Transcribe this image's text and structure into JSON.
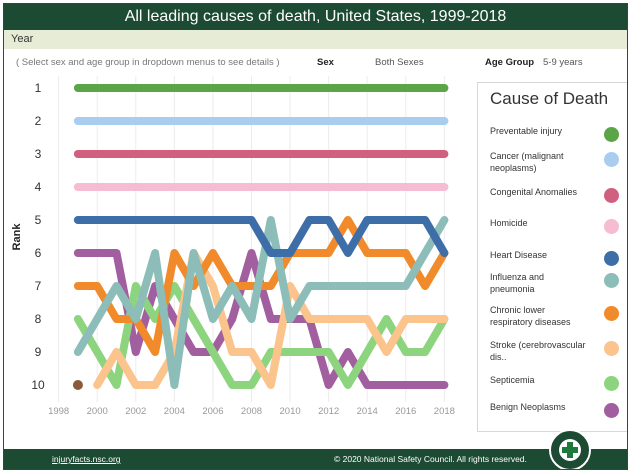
{
  "header": {
    "title": "All leading causes of death, United States, 1999-2018",
    "year_label": "Year"
  },
  "controls": {
    "instructions": "( Select sex and age group in dropdown menus to see details )",
    "sex_label": "Sex",
    "sex_value": "Both Sexes",
    "age_label": "Age Group",
    "age_value": "5-9 years"
  },
  "legend": {
    "title": "Cause of Death",
    "items": [
      {
        "label": "Preventable injury",
        "color": "#5aa646"
      },
      {
        "label": "Cancer (malignant neoplasms)",
        "color": "#a9cdef"
      },
      {
        "label": "Congenital Anomalies",
        "color": "#d1607f"
      },
      {
        "label": "Homicide",
        "color": "#f5bcd2"
      },
      {
        "label": "Heart Disease",
        "color": "#3d6ea8"
      },
      {
        "label": "Influenza and pneumonia",
        "color": "#8dbdb8"
      },
      {
        "label": "Chronic lower respiratory diseases",
        "color": "#f08a2a"
      },
      {
        "label": "Stroke (cerebrovascular dis..",
        "color": "#fbc48c"
      },
      {
        "label": "Septicemia",
        "color": "#8dd47e"
      },
      {
        "label": "Benign Neoplasms",
        "color": "#a25f9f"
      }
    ]
  },
  "footer": {
    "link": "injuryfacts.nsc.org",
    "copyright": "© 2020 National Safety Council. All rights reserved."
  },
  "chart_data": {
    "type": "line",
    "title": "All leading causes of death, United States, 1999-2018",
    "ylabel": "Rank",
    "xlabel": "",
    "x_ticks": [
      1998,
      2000,
      2002,
      2004,
      2006,
      2008,
      2010,
      2012,
      2014,
      2016,
      2018
    ],
    "y_ticks": [
      1,
      2,
      3,
      4,
      5,
      6,
      7,
      8,
      9,
      10
    ],
    "xlim": [
      1997.5,
      2018.5
    ],
    "ylim": [
      10.5,
      0.6
    ],
    "y_inverted": true,
    "grid": "vertical",
    "x": [
      1999,
      2000,
      2001,
      2002,
      2003,
      2004,
      2005,
      2006,
      2007,
      2008,
      2009,
      2010,
      2011,
      2012,
      2013,
      2014,
      2015,
      2016,
      2017,
      2018
    ],
    "series": [
      {
        "name": "Preventable injury",
        "color": "#5aa646",
        "values": [
          1,
          1,
          1,
          1,
          1,
          1,
          1,
          1,
          1,
          1,
          1,
          1,
          1,
          1,
          1,
          1,
          1,
          1,
          1,
          1
        ]
      },
      {
        "name": "Cancer (malignant neoplasms)",
        "color": "#a9cdef",
        "values": [
          2,
          2,
          2,
          2,
          2,
          2,
          2,
          2,
          2,
          2,
          2,
          2,
          2,
          2,
          2,
          2,
          2,
          2,
          2,
          2
        ]
      },
      {
        "name": "Congenital Anomalies",
        "color": "#d1607f",
        "values": [
          3,
          3,
          3,
          3,
          3,
          3,
          3,
          3,
          3,
          3,
          3,
          3,
          3,
          3,
          3,
          3,
          3,
          3,
          3,
          3
        ]
      },
      {
        "name": "Homicide",
        "color": "#f5bcd2",
        "values": [
          4,
          4,
          4,
          4,
          4,
          4,
          4,
          4,
          4,
          4,
          4,
          4,
          4,
          4,
          4,
          4,
          4,
          4,
          4,
          4
        ]
      },
      {
        "name": "Heart Disease",
        "color": "#3d6ea8",
        "values": [
          5,
          5,
          5,
          5,
          5,
          5,
          5,
          5,
          5,
          5,
          6,
          6,
          5,
          5,
          6,
          5,
          5,
          5,
          5,
          6
        ]
      },
      {
        "name": "Influenza and pneumonia",
        "color": "#8dbdb8",
        "values": [
          9,
          8,
          7,
          8,
          6,
          10,
          6,
          8,
          7,
          8,
          5,
          8,
          7,
          7,
          7,
          7,
          7,
          7,
          6,
          5
        ]
      },
      {
        "name": "Chronic lower respiratory diseases",
        "color": "#f08a2a",
        "values": [
          7,
          7,
          8,
          8,
          9,
          6,
          7,
          6,
          7,
          7,
          7,
          6,
          6,
          6,
          5,
          6,
          6,
          6,
          7,
          6
        ]
      },
      {
        "name": "Stroke (cerebrovascular dis..",
        "color": "#fbc48c",
        "values": [
          null,
          10,
          9,
          10,
          10,
          9,
          6,
          7,
          9,
          9,
          10,
          7,
          8,
          8,
          8,
          8,
          9,
          8,
          8,
          8
        ]
      },
      {
        "name": "Septicemia",
        "color": "#8dd47e",
        "values": [
          8,
          9,
          10,
          7,
          8,
          7,
          8,
          9,
          10,
          10,
          9,
          9,
          9,
          9,
          10,
          9,
          8,
          9,
          9,
          8
        ]
      },
      {
        "name": "Benign Neoplasms",
        "color": "#a25f9f",
        "values": [
          6,
          6,
          6,
          9,
          7,
          8,
          9,
          9,
          8,
          6,
          8,
          8,
          8,
          10,
          9,
          10,
          10,
          10,
          10,
          10
        ]
      }
    ],
    "point_markers": [
      {
        "year": 1999,
        "rank": 10,
        "color": "#8b5a3c"
      }
    ]
  }
}
